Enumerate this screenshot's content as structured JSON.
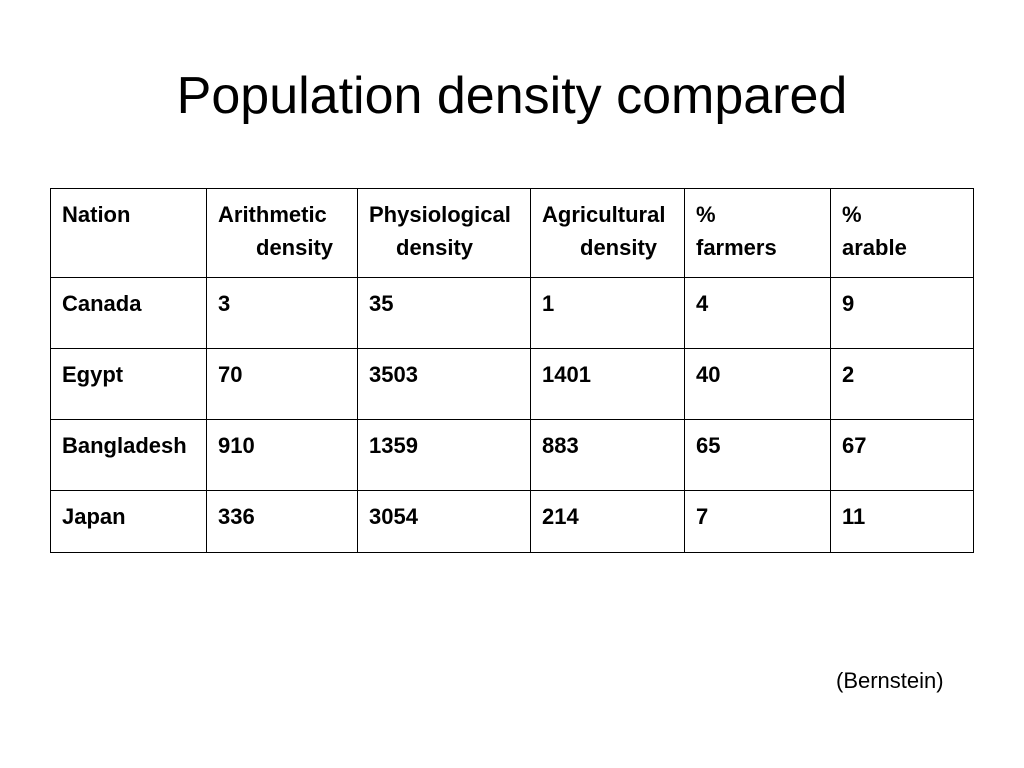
{
  "slide": {
    "title": "Population density compared",
    "credit": "(Bernstein)"
  },
  "table": {
    "headers": [
      {
        "line1": "Nation",
        "line2": ""
      },
      {
        "line1": "Arithmetic",
        "line2": "density"
      },
      {
        "line1": "Physiological",
        "line2": "density"
      },
      {
        "line1": "Agricultural",
        "line2": "density"
      },
      {
        "line1": "%",
        "line2": "farmers"
      },
      {
        "line1": "%",
        "line2": "arable"
      }
    ],
    "rows": [
      [
        "Canada",
        "3",
        "35",
        "1",
        "4",
        "9"
      ],
      [
        "Egypt",
        "70",
        "3503",
        "1401",
        "40",
        "2"
      ],
      [
        "Bangladesh",
        "910",
        "1359",
        "883",
        "65",
        "67"
      ],
      [
        "Japan",
        "336",
        "3054",
        "214",
        "7",
        "11"
      ]
    ]
  }
}
